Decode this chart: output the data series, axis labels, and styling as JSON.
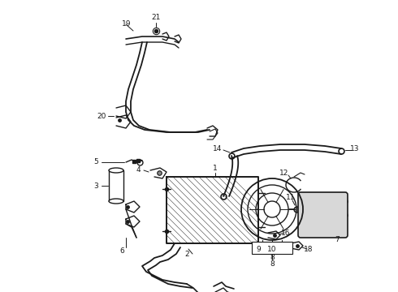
{
  "background_color": "#ffffff",
  "line_color": "#1a1a1a",
  "figsize": [
    4.9,
    3.6
  ],
  "dpi": 100,
  "label_fontsize": 6.5
}
